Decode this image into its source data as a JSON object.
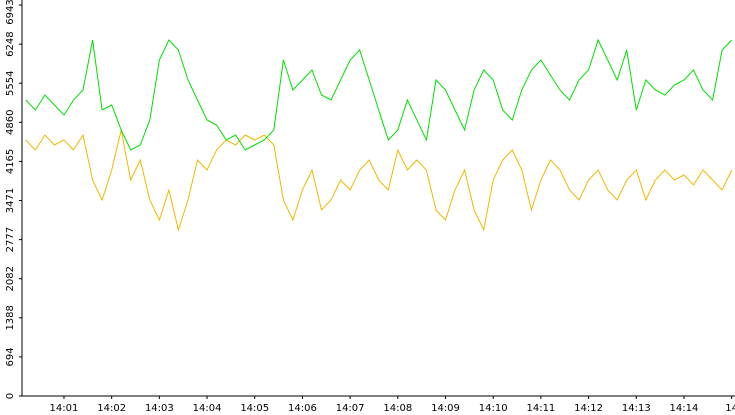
{
  "chart_data": {
    "type": "line",
    "x": [
      0.2,
      0.4,
      0.6,
      0.8,
      1.0,
      1.2,
      1.4,
      1.6,
      1.8,
      2.0,
      2.2,
      2.4,
      2.6,
      2.8,
      3.0,
      3.2,
      3.4,
      3.6,
      3.8,
      4.0,
      4.2,
      4.4,
      4.6,
      4.8,
      5.0,
      5.2,
      5.4,
      5.6,
      5.8,
      6.0,
      6.2,
      6.4,
      6.6,
      6.8,
      7.0,
      7.2,
      7.4,
      7.6,
      7.8,
      8.0,
      8.2,
      8.4,
      8.6,
      8.8,
      9.0,
      9.2,
      9.4,
      9.6,
      9.8,
      10.0,
      10.2,
      10.4,
      10.6,
      10.8,
      11.0,
      11.2,
      11.4,
      11.6,
      11.8,
      12.0,
      12.2,
      12.4,
      12.6,
      12.8,
      13.0,
      13.2,
      13.4,
      13.6,
      13.8,
      14.0,
      14.2,
      14.4,
      14.6,
      14.8,
      15.0
    ],
    "series": [
      {
        "color": "#00e000",
        "values": [
          5256,
          5078,
          5345,
          5167,
          4990,
          5256,
          5434,
          6322,
          5078,
          5167,
          4723,
          4368,
          4457,
          4901,
          5966,
          6322,
          6144,
          5611,
          5256,
          4901,
          4812,
          4546,
          4635,
          4368,
          4457,
          4546,
          4723,
          5966,
          5434,
          5611,
          5789,
          5345,
          5256,
          5611,
          5966,
          6144,
          5611,
          5078,
          4546,
          4723,
          5256,
          4901,
          4546,
          5611,
          5434,
          5078,
          4723,
          5434,
          5789,
          5611,
          5078,
          4901,
          5434,
          5789,
          5966,
          5700,
          5434,
          5256,
          5611,
          5789,
          6322,
          5966,
          5611,
          6144,
          5078,
          5611,
          5434,
          5345,
          5523,
          5611,
          5789,
          5434,
          5256,
          6144,
          6322
        ]
      },
      {
        "color": "#f0b800",
        "values": [
          4546,
          4368,
          4635,
          4457,
          4546,
          4368,
          4635,
          3836,
          3480,
          4013,
          4723,
          3836,
          4190,
          3480,
          3125,
          3658,
          2948,
          3480,
          4190,
          4013,
          4368,
          4546,
          4457,
          4635,
          4546,
          4635,
          4457,
          3480,
          3125,
          3658,
          4013,
          3303,
          3480,
          3836,
          3658,
          4013,
          4190,
          3836,
          3658,
          4368,
          4013,
          4190,
          4013,
          3303,
          3125,
          3658,
          4013,
          3303,
          2948,
          3836,
          4190,
          4368,
          4013,
          3303,
          3836,
          4190,
          4013,
          3658,
          3480,
          3836,
          4013,
          3658,
          3480,
          3836,
          4013,
          3480,
          3836,
          4013,
          3836,
          3925,
          3747,
          4013,
          3836,
          3658,
          4013
        ]
      }
    ],
    "ylim": [
      0,
      6943
    ],
    "yticks": [
      0,
      694,
      1388,
      2082,
      2777,
      3471,
      4165,
      4860,
      5554,
      6248,
      6943
    ],
    "xlim": [
      0.12,
      15.07
    ],
    "xticks": [
      {
        "value": 1,
        "label": "14:01"
      },
      {
        "value": 2,
        "label": "14:02"
      },
      {
        "value": 3,
        "label": "14:03"
      },
      {
        "value": 4,
        "label": "14:04"
      },
      {
        "value": 5,
        "label": "14:05"
      },
      {
        "value": 6,
        "label": "14:06"
      },
      {
        "value": 7,
        "label": "14:07"
      },
      {
        "value": 8,
        "label": "14:08"
      },
      {
        "value": 9,
        "label": "14:09"
      },
      {
        "value": 10,
        "label": "14:10"
      },
      {
        "value": 11,
        "label": "14:11"
      },
      {
        "value": 12,
        "label": "14:12"
      },
      {
        "value": 13,
        "label": "14:13"
      },
      {
        "value": 14,
        "label": "14:14"
      },
      {
        "value": 15,
        "label": "14"
      }
    ]
  }
}
